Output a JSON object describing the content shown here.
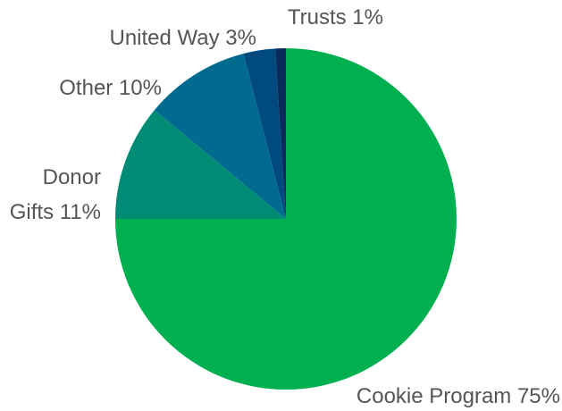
{
  "chart_data": {
    "type": "pie",
    "title": "",
    "start_angle_deg": 0,
    "direction": "clockwise",
    "slices": [
      {
        "name": "Cookie Program",
        "value": 75,
        "label_lines": [
          "Cookie Program 75%"
        ],
        "color": "#00B050"
      },
      {
        "name": "Donor Gifts",
        "value": 11,
        "label_lines": [
          "Donor",
          "Gifts 11%"
        ],
        "color": "#008C74"
      },
      {
        "name": "Other",
        "value": 10,
        "label_lines": [
          "Other 10%"
        ],
        "color": "#006B8F"
      },
      {
        "name": "United Way",
        "value": 3,
        "label_lines": [
          "United Way 3%"
        ],
        "color": "#004A7F"
      },
      {
        "name": "Trusts",
        "value": 1,
        "label_lines": [
          "Trusts 1%"
        ],
        "color": "#0A2A5C"
      }
    ]
  }
}
